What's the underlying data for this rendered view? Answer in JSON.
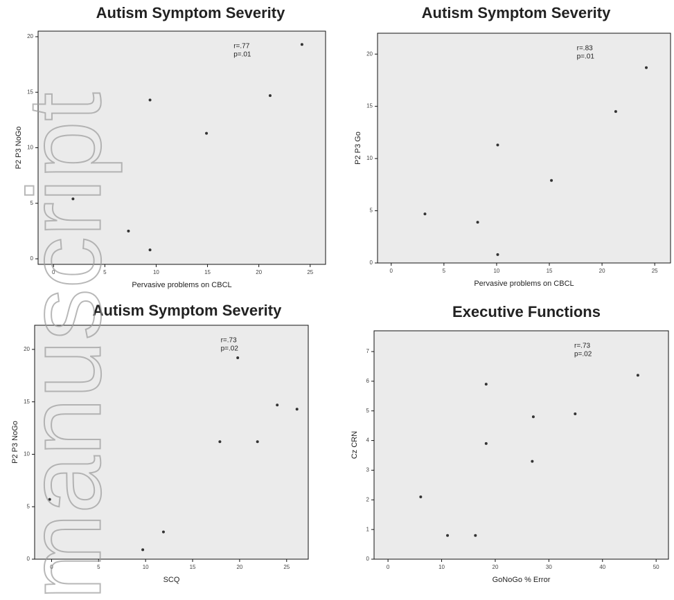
{
  "watermark": "manuscript",
  "chart_data": [
    {
      "type": "scatter",
      "title": "Autism Symptom Severity",
      "x_label": "Pervasive problems on CBCL",
      "y_label": "P2 P3 NoGo",
      "annotations": [
        "r=.77",
        "p=.01"
      ],
      "color": "#333333",
      "x": [
        1.9,
        7.3,
        9.4,
        9.4,
        14.9,
        21.1,
        24.2
      ],
      "values": [
        5.4,
        2.5,
        0.8,
        14.3,
        11.3,
        14.7,
        19.3
      ],
      "xlim": [
        -1.5,
        26.5
      ],
      "ylim": [
        -0.5,
        20.5
      ],
      "xticks": [
        0,
        5,
        10,
        15,
        20,
        25
      ],
      "yticks": [
        0,
        5,
        10,
        15,
        20
      ]
    },
    {
      "type": "scatter",
      "title": "Autism Symptom Severity",
      "x_label": "Pervasive problems on CBCL",
      "y_label": "P2 P3 Go",
      "annotations": [
        "r=.83",
        "p=.01"
      ],
      "color": "#333333",
      "x": [
        3.2,
        8.2,
        10.1,
        10.1,
        15.2,
        21.3,
        24.2
      ],
      "values": [
        4.7,
        3.9,
        0.8,
        11.3,
        7.9,
        14.5,
        18.7
      ],
      "xlim": [
        -1.3,
        26.5
      ],
      "ylim": [
        0,
        22
      ],
      "xticks": [
        0,
        5,
        10,
        15,
        20,
        25
      ],
      "yticks": [
        0,
        5,
        10,
        15,
        20
      ]
    },
    {
      "type": "scatter",
      "title": "Autism Symptom Severity",
      "x_label": "SCQ",
      "y_label": "P2 P3 NoGo",
      "annotations": [
        "r=.73",
        "p=.02"
      ],
      "color": "#333333",
      "x": [
        -0.2,
        9.7,
        11.9,
        17.9,
        21.9,
        19.8,
        24.0,
        26.1
      ],
      "values": [
        5.7,
        0.9,
        2.6,
        11.2,
        11.2,
        19.2,
        14.7,
        14.3
      ],
      "xlim": [
        -1.8,
        27.3
      ],
      "ylim": [
        0,
        22.3
      ],
      "xticks": [
        0,
        5,
        10,
        15,
        20,
        25
      ],
      "yticks": [
        0,
        5,
        10,
        15,
        20
      ]
    },
    {
      "type": "scatter",
      "title": "Executive Functions",
      "x_label": "GoNoGo % Error",
      "y_label": "Cz CRN",
      "annotations": [
        "r=.73",
        "p=.02"
      ],
      "color": "#333333",
      "x": [
        6.1,
        11.1,
        16.3,
        18.3,
        18.3,
        26.9,
        27.1,
        34.9,
        46.6
      ],
      "values": [
        2.1,
        0.8,
        0.8,
        3.9,
        5.9,
        3.3,
        4.8,
        4.9,
        6.2
      ],
      "xlim": [
        -2.6,
        52.3
      ],
      "ylim": [
        0,
        7.7
      ],
      "xticks": [
        0,
        10,
        20,
        30,
        40,
        50
      ],
      "yticks": [
        0,
        1,
        2,
        3,
        4,
        5,
        6,
        7
      ]
    }
  ]
}
